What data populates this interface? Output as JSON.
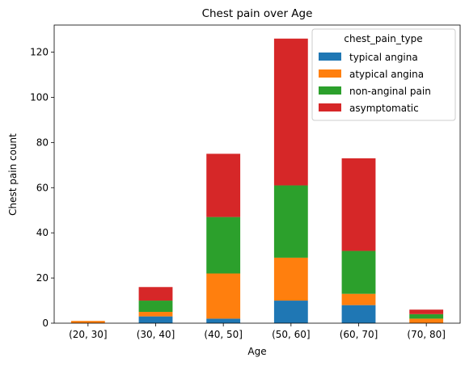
{
  "chart_data": {
    "type": "bar",
    "stacked": true,
    "title": "Chest pain over Age",
    "xlabel": "Age",
    "ylabel": "Chest pain count",
    "categories": [
      "(20, 30]",
      "(30, 40]",
      "(40, 50]",
      "(50, 60]",
      "(60, 70]",
      "(70, 80]"
    ],
    "ylim": [
      0,
      132
    ],
    "yticks": [
      0,
      20,
      40,
      60,
      80,
      100,
      120
    ],
    "grid": false,
    "legend": {
      "title": "chest_pain_type",
      "placement": "top-right"
    },
    "series": [
      {
        "name": "typical angina",
        "color": "#1f77b4",
        "values": [
          0,
          3,
          2,
          10,
          8,
          0
        ]
      },
      {
        "name": "atypical angina",
        "color": "#ff7f0e",
        "values": [
          1,
          2,
          20,
          19,
          5,
          2
        ]
      },
      {
        "name": "non-anginal pain",
        "color": "#2ca02c",
        "values": [
          0,
          5,
          25,
          32,
          19,
          2
        ]
      },
      {
        "name": "asymptomatic",
        "color": "#d62728",
        "values": [
          0,
          6,
          28,
          65,
          41,
          2
        ]
      }
    ]
  }
}
